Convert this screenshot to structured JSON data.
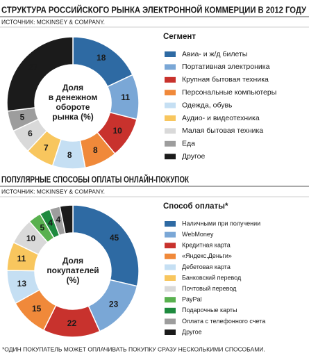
{
  "chart_data": [
    {
      "type": "pie",
      "title": "СТРУКТУРА РОССИЙСКОГО РЫНКА ЭЛЕКТРОННОЙ КОММЕРЦИИ В 2012 ГОДУ",
      "source": "ИСТОЧНИК: MCKINSEY & COMPANY.",
      "legend_title": "Сегмент",
      "center_label": [
        "Доля",
        "в денежном",
        "обороте",
        "рынка (%)"
      ],
      "categories": [
        "Авиа- и ж/д билеты",
        "Портативная электроника",
        "Крупная бытовая техника",
        "Персональные компьютеры",
        "Одежда, обувь",
        "Аудио- и видеотехника",
        "Малая бытовая техника",
        "Еда",
        "Другое"
      ],
      "values": [
        18,
        11,
        10,
        8,
        8,
        7,
        6,
        5,
        27
      ],
      "colors": [
        "#2e6aa3",
        "#7aa7d6",
        "#c8322d",
        "#f0893a",
        "#c5dff3",
        "#f8c65e",
        "#d9d9d9",
        "#9d9d9d",
        "#1b1b1b"
      ]
    },
    {
      "type": "pie",
      "title": "ПОПУЛЯРНЫЕ СПОСОБЫ ОПЛАТЫ ОНЛАЙН-ПОКУПОК",
      "source": "ИСТОЧНИК: MCKINSEY & COMPANY.",
      "legend_title": "Способ оплаты*",
      "center_label": [
        "Доля",
        "покупателей",
        "(%)"
      ],
      "categories": [
        "Наличными при получении",
        "WebMoney",
        "Кредитная карта",
        "«Яндекс.Деньги»",
        "Дебетовая карта",
        "Банковский перевод",
        "Почтовый перевод",
        "PayPal",
        "Подарочные карты",
        "Оплата с телефонного счета",
        "Другое"
      ],
      "values": [
        45,
        23,
        22,
        15,
        13,
        11,
        10,
        5,
        4,
        4,
        5
      ],
      "colors": [
        "#2e6aa3",
        "#7aa7d6",
        "#c8322d",
        "#f0893a",
        "#c5dff3",
        "#f8c65e",
        "#d9d9d9",
        "#59b14f",
        "#1e8a3e",
        "#9d9d9d",
        "#1b1b1b"
      ]
    }
  ],
  "footnote": "*ОДИН ПОКУПАТЕЛЬ МОЖЕТ ОПЛАЧИВАТЬ ПОКУПКУ СРАЗУ НЕСКОЛЬКИМИ СПОСОБАМИ."
}
